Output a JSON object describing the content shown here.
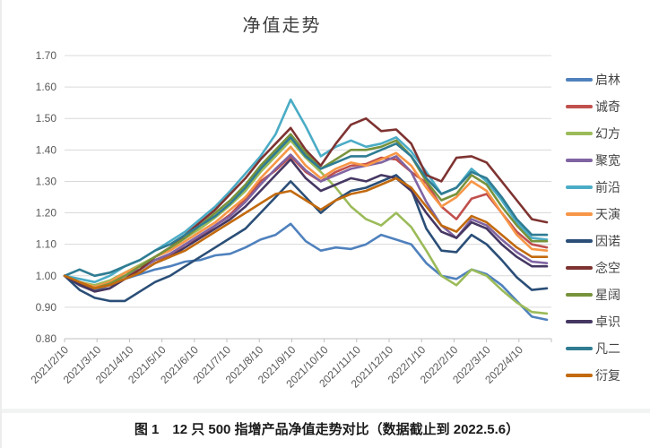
{
  "page": {
    "caption": "图 1　12 只 500 指增产品净值走势对比（数据截止到 2022.5.6）"
  },
  "chart_data": {
    "type": "line",
    "title": "净值走势",
    "xlabel": "",
    "ylabel": "",
    "ylim": [
      0.8,
      1.7
    ],
    "grid": true,
    "legend_position": "right",
    "yticks": [
      "1.70",
      "1.60",
      "1.50",
      "1.40",
      "1.30",
      "1.20",
      "1.10",
      "1.00",
      "0.90",
      "0.80"
    ],
    "x_tick_labels": [
      "2021/2/10",
      "2021/3/10",
      "2021/4/10",
      "2021/5/10",
      "2021/6/10",
      "2021/7/10",
      "2021/8/10",
      "2021/9/10",
      "2021/10/10",
      "2021/11/10",
      "2021/12/10",
      "2022/1/10",
      "2022/2/10",
      "2022/3/10",
      "2022/4/10"
    ],
    "x": [
      "2021/2/10",
      "2021/2/24",
      "2021/3/10",
      "2021/3/24",
      "2021/4/7",
      "2021/4/21",
      "2021/5/7",
      "2021/5/21",
      "2021/6/4",
      "2021/6/18",
      "2021/7/2",
      "2021/7/16",
      "2021/7/30",
      "2021/8/13",
      "2021/8/27",
      "2021/9/10",
      "2021/9/24",
      "2021/10/8",
      "2021/10/22",
      "2021/11/5",
      "2021/11/19",
      "2021/12/3",
      "2021/12/17",
      "2021/12/31",
      "2022/1/14",
      "2022/1/28",
      "2022/2/11",
      "2022/2/25",
      "2022/3/11",
      "2022/3/25",
      "2022/4/8",
      "2022/4/22",
      "2022/5/6"
    ],
    "series": [
      {
        "name": "启林",
        "color": "#4F81BD",
        "values": [
          1.0,
          0.97,
          0.955,
          0.97,
          0.99,
          1.005,
          1.02,
          1.03,
          1.045,
          1.05,
          1.065,
          1.07,
          1.09,
          1.115,
          1.13,
          1.165,
          1.11,
          1.08,
          1.09,
          1.085,
          1.1,
          1.13,
          1.115,
          1.1,
          1.04,
          1.0,
          0.99,
          1.02,
          1.005,
          0.97,
          0.92,
          0.87,
          0.86
        ]
      },
      {
        "name": "诚奇",
        "color": "#C0504D",
        "values": [
          1.0,
          0.975,
          0.96,
          0.975,
          1.0,
          1.02,
          1.05,
          1.065,
          1.1,
          1.125,
          1.16,
          1.195,
          1.245,
          1.3,
          1.335,
          1.38,
          1.33,
          1.3,
          1.33,
          1.35,
          1.355,
          1.375,
          1.37,
          1.33,
          1.295,
          1.22,
          1.18,
          1.245,
          1.26,
          1.2,
          1.14,
          1.1,
          1.09
        ]
      },
      {
        "name": "幻方",
        "color": "#9BBB59",
        "values": [
          1.0,
          0.98,
          0.97,
          0.985,
          1.01,
          1.035,
          1.06,
          1.085,
          1.12,
          1.15,
          1.185,
          1.225,
          1.27,
          1.33,
          1.38,
          1.43,
          1.375,
          1.33,
          1.28,
          1.22,
          1.18,
          1.16,
          1.2,
          1.155,
          1.08,
          1.0,
          0.97,
          1.02,
          1.0,
          0.955,
          0.915,
          0.885,
          0.88
        ]
      },
      {
        "name": "聚宽",
        "color": "#8064A2",
        "values": [
          1.0,
          0.975,
          0.96,
          0.975,
          1.0,
          1.02,
          1.05,
          1.07,
          1.1,
          1.13,
          1.16,
          1.19,
          1.235,
          1.29,
          1.34,
          1.385,
          1.335,
          1.3,
          1.32,
          1.34,
          1.35,
          1.36,
          1.38,
          1.33,
          1.235,
          1.16,
          1.12,
          1.18,
          1.16,
          1.115,
          1.075,
          1.045,
          1.04
        ]
      },
      {
        "name": "前沿",
        "color": "#4BACC6",
        "values": [
          1.0,
          0.99,
          0.98,
          1.0,
          1.03,
          1.05,
          1.08,
          1.11,
          1.14,
          1.18,
          1.22,
          1.27,
          1.325,
          1.38,
          1.45,
          1.56,
          1.475,
          1.38,
          1.41,
          1.43,
          1.41,
          1.42,
          1.44,
          1.395,
          1.33,
          1.26,
          1.28,
          1.34,
          1.3,
          1.24,
          1.17,
          1.12,
          1.115
        ]
      },
      {
        "name": "天演",
        "color": "#F79646",
        "values": [
          1.0,
          0.98,
          0.965,
          0.98,
          1.01,
          1.03,
          1.06,
          1.08,
          1.11,
          1.14,
          1.17,
          1.21,
          1.25,
          1.31,
          1.36,
          1.41,
          1.35,
          1.31,
          1.34,
          1.36,
          1.35,
          1.37,
          1.39,
          1.35,
          1.28,
          1.22,
          1.25,
          1.3,
          1.27,
          1.2,
          1.13,
          1.085,
          1.08
        ]
      },
      {
        "name": "因诺",
        "color": "#2A4E77",
        "values": [
          1.0,
          0.955,
          0.93,
          0.92,
          0.92,
          0.95,
          0.98,
          1.0,
          1.03,
          1.06,
          1.09,
          1.12,
          1.15,
          1.2,
          1.25,
          1.3,
          1.25,
          1.2,
          1.24,
          1.27,
          1.28,
          1.3,
          1.32,
          1.275,
          1.15,
          1.08,
          1.075,
          1.13,
          1.1,
          1.05,
          0.995,
          0.955,
          0.96
        ]
      },
      {
        "name": "念空",
        "color": "#7E3331",
        "values": [
          1.0,
          0.975,
          0.95,
          0.96,
          0.99,
          1.02,
          1.06,
          1.09,
          1.13,
          1.17,
          1.21,
          1.26,
          1.31,
          1.37,
          1.42,
          1.47,
          1.4,
          1.35,
          1.42,
          1.48,
          1.5,
          1.46,
          1.465,
          1.42,
          1.32,
          1.3,
          1.375,
          1.38,
          1.36,
          1.3,
          1.24,
          1.18,
          1.17
        ]
      },
      {
        "name": "星阔",
        "color": "#77933C",
        "values": [
          1.0,
          0.98,
          0.96,
          0.975,
          1.0,
          1.03,
          1.06,
          1.09,
          1.12,
          1.16,
          1.2,
          1.24,
          1.29,
          1.35,
          1.4,
          1.45,
          1.39,
          1.34,
          1.37,
          1.4,
          1.4,
          1.41,
          1.43,
          1.38,
          1.3,
          1.24,
          1.26,
          1.32,
          1.29,
          1.22,
          1.16,
          1.11,
          1.11
        ]
      },
      {
        "name": "卓识",
        "color": "#453762",
        "values": [
          1.0,
          0.97,
          0.95,
          0.96,
          0.99,
          1.01,
          1.04,
          1.06,
          1.09,
          1.12,
          1.15,
          1.18,
          1.22,
          1.27,
          1.32,
          1.37,
          1.31,
          1.27,
          1.29,
          1.31,
          1.3,
          1.32,
          1.31,
          1.27,
          1.2,
          1.14,
          1.12,
          1.17,
          1.15,
          1.1,
          1.06,
          1.03,
          1.03
        ]
      },
      {
        "name": "凡二",
        "color": "#2F7C93",
        "values": [
          1.0,
          1.02,
          1.0,
          1.01,
          1.03,
          1.05,
          1.08,
          1.1,
          1.13,
          1.16,
          1.19,
          1.23,
          1.28,
          1.34,
          1.39,
          1.44,
          1.38,
          1.34,
          1.36,
          1.38,
          1.38,
          1.4,
          1.42,
          1.38,
          1.31,
          1.26,
          1.28,
          1.33,
          1.31,
          1.25,
          1.18,
          1.13,
          1.13
        ]
      },
      {
        "name": "衍复",
        "color": "#C26A0E",
        "values": [
          1.0,
          0.98,
          0.96,
          0.97,
          0.99,
          1.01,
          1.04,
          1.06,
          1.08,
          1.11,
          1.14,
          1.17,
          1.2,
          1.23,
          1.26,
          1.27,
          1.24,
          1.21,
          1.24,
          1.26,
          1.27,
          1.29,
          1.31,
          1.28,
          1.22,
          1.16,
          1.14,
          1.19,
          1.17,
          1.13,
          1.09,
          1.06,
          1.06
        ]
      }
    ]
  }
}
